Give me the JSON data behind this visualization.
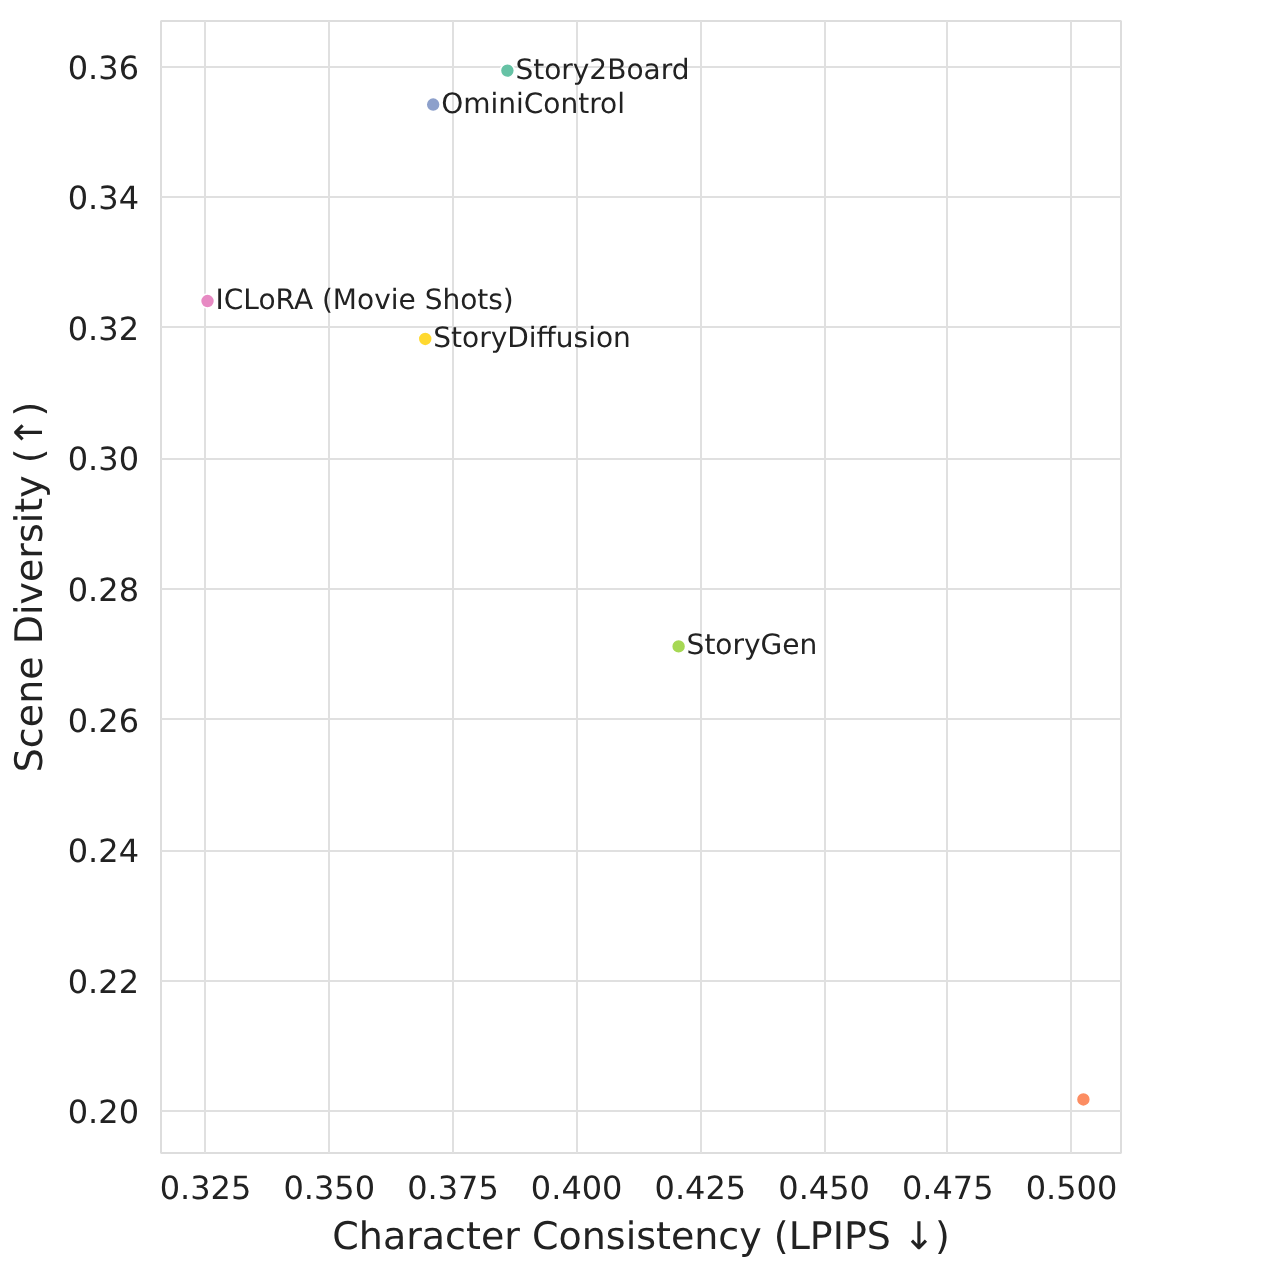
{
  "chart_data": {
    "type": "scatter",
    "xlabel": "Character Consistency (LPIPS ↓)",
    "ylabel": "Scene Diversity (↑)",
    "xlim": [
      0.316,
      0.51
    ],
    "ylim": [
      0.1936,
      0.367
    ],
    "xticks": [
      0.325,
      {
        "value": 0.35,
        "label": "0.350"
      },
      0.375,
      {
        "value": 0.4,
        "label": "0.400"
      },
      0.425,
      {
        "value": 0.45,
        "label": "0.450"
      },
      0.475,
      {
        "value": 0.5,
        "label": "0.500"
      }
    ],
    "yticks": [
      {
        "value": 0.2,
        "label": "0.20"
      },
      {
        "value": 0.22,
        "label": "0.22"
      },
      {
        "value": 0.24,
        "label": "0.24"
      },
      {
        "value": 0.26,
        "label": "0.26"
      },
      {
        "value": 0.28,
        "label": "0.28"
      },
      {
        "value": 0.3,
        "label": "0.30"
      },
      {
        "value": 0.32,
        "label": "0.32"
      },
      {
        "value": 0.34,
        "label": "0.34"
      },
      {
        "value": 0.36,
        "label": "0.36"
      }
    ],
    "grid": true,
    "legend": false,
    "marker": "circle",
    "series": [
      {
        "name": "Story2Board",
        "color": "#66c2a5",
        "x": [
          0.386
        ],
        "values": [
          0.3594
        ]
      },
      {
        "color": "#fc8d62",
        "x": [
          0.5024
        ],
        "values": [
          0.2018
        ]
      },
      {
        "name": "OminiControl",
        "color": "#8da0cb",
        "x": [
          0.371
        ],
        "values": [
          0.3542
        ]
      },
      {
        "name": "ICLoRA (Movie Shots)",
        "color": "#e78ac3",
        "x": [
          0.3254
        ],
        "values": [
          0.3241
        ]
      },
      {
        "name": "StoryGen",
        "color": "#a6d854",
        "x": [
          0.4206
        ],
        "values": [
          0.2712
        ]
      },
      {
        "name": "StoryDiffusion",
        "color": "#ffd92f",
        "x": [
          0.3694
        ],
        "values": [
          0.3183
        ]
      }
    ]
  }
}
